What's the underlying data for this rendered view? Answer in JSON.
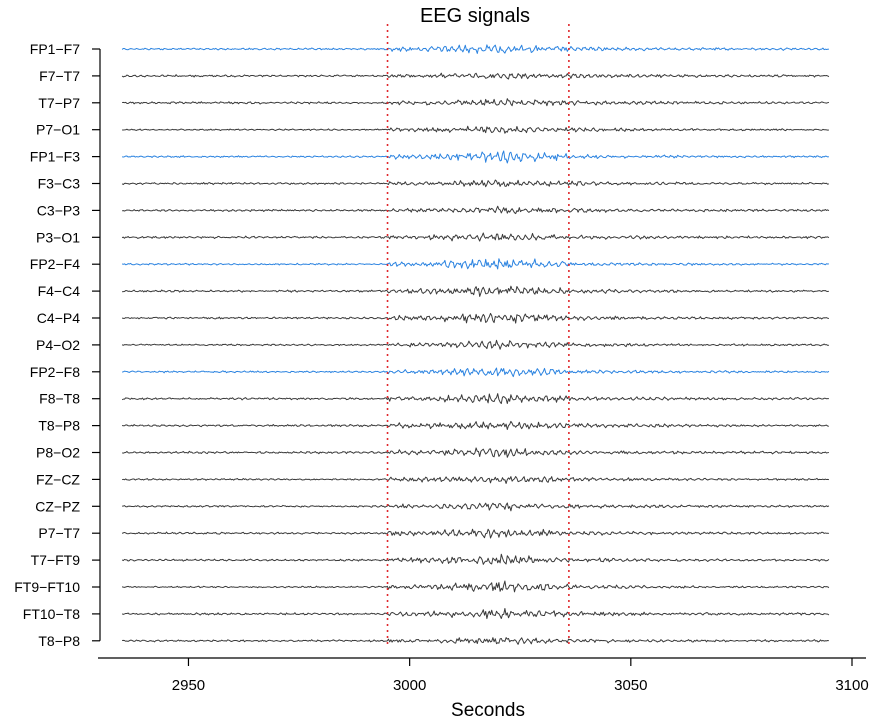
{
  "chart_data": {
    "type": "line",
    "title": "EEG signals",
    "xlabel": "Seconds",
    "ylabel": "",
    "xlim": [
      2930,
      3100
    ],
    "x_ticks": [
      2950,
      3000,
      3050,
      3100
    ],
    "signal_window": [
      2935,
      3095
    ],
    "seizure_markers": [
      2995,
      3036
    ],
    "grid": false,
    "colors": {
      "highlight": "#2b83e0",
      "default": "#3a3a3a",
      "marker": "#e0282c"
    },
    "channels": [
      {
        "name": "FP1−F7",
        "color": "#2b83e0"
      },
      {
        "name": "F7−T7",
        "color": "#3a3a3a"
      },
      {
        "name": "T7−P7",
        "color": "#3a3a3a"
      },
      {
        "name": "P7−O1",
        "color": "#3a3a3a"
      },
      {
        "name": "FP1−F3",
        "color": "#2b83e0"
      },
      {
        "name": "F3−C3",
        "color": "#3a3a3a"
      },
      {
        "name": "C3−P3",
        "color": "#3a3a3a"
      },
      {
        "name": "P3−O1",
        "color": "#3a3a3a"
      },
      {
        "name": "FP2−F4",
        "color": "#2b83e0"
      },
      {
        "name": "F4−C4",
        "color": "#3a3a3a"
      },
      {
        "name": "C4−P4",
        "color": "#3a3a3a"
      },
      {
        "name": "P4−O2",
        "color": "#3a3a3a"
      },
      {
        "name": "FP2−F8",
        "color": "#2b83e0"
      },
      {
        "name": "F8−T8",
        "color": "#3a3a3a"
      },
      {
        "name": "T8−P8",
        "color": "#3a3a3a"
      },
      {
        "name": "P8−O2",
        "color": "#3a3a3a"
      },
      {
        "name": "FZ−CZ",
        "color": "#3a3a3a"
      },
      {
        "name": "CZ−PZ",
        "color": "#3a3a3a"
      },
      {
        "name": "P7−T7",
        "color": "#3a3a3a"
      },
      {
        "name": "T7−FT9",
        "color": "#3a3a3a"
      },
      {
        "name": "FT9−FT10",
        "color": "#3a3a3a"
      },
      {
        "name": "FT10−T8",
        "color": "#3a3a3a"
      },
      {
        "name": "T8−P8",
        "color": "#3a3a3a"
      }
    ]
  }
}
